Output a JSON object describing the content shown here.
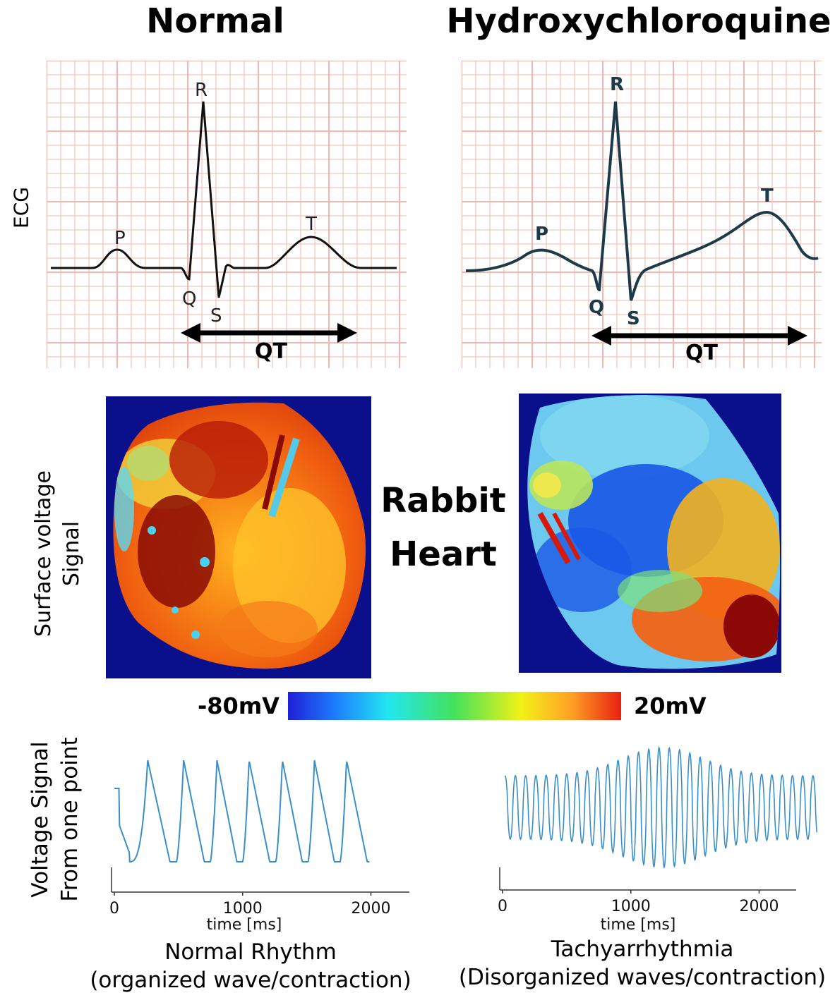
{
  "columns": {
    "normal": {
      "title": "Normal",
      "caption_line1": "Normal Rhythm",
      "caption_line2": "(organized wave/contraction)"
    },
    "hcq": {
      "title": "Hydroxychloroquine",
      "caption_line1": "Tachyarrhythmia",
      "caption_line2": "(Disorganized waves/contraction)"
    }
  },
  "row_labels": {
    "ecg": "ECG",
    "surface_line1": "Surface voltage",
    "surface_line2": "Signal",
    "voltage_line1": "Voltage  Signal",
    "voltage_line2": "From one point"
  },
  "ecg_labels": {
    "p": "P",
    "q": "Q",
    "r": "R",
    "s": "S",
    "t": "T",
    "qt": "QT"
  },
  "center_label": {
    "line1": "Rabbit",
    "line2": "Heart"
  },
  "colorbar": {
    "min_label": "-80mV",
    "max_label": "20mV"
  },
  "colors": {
    "grid": "#f1b8b0",
    "normal_ecg": "#111111",
    "hcq_ecg": "#1c3a48",
    "trace": "#3b8fc9",
    "map_bg": "#0a0f8c"
  },
  "chart_data": [
    {
      "type": "line",
      "name": "normal-trace",
      "xlabel": "time [ms]",
      "xticks": [
        "0",
        "1000",
        "2000"
      ],
      "xlim": [
        0,
        2300
      ],
      "peaks_ms": [
        260,
        540,
        800,
        1050,
        1310,
        1560,
        1810
      ],
      "end_ms": 1990
    },
    {
      "type": "line",
      "name": "hcq-trace",
      "xlabel": "time [ms]",
      "xticks": [
        "0",
        "1000",
        "2000"
      ],
      "xlim": [
        0,
        2300
      ],
      "period_ms": 80,
      "end_ms": 2450
    }
  ]
}
